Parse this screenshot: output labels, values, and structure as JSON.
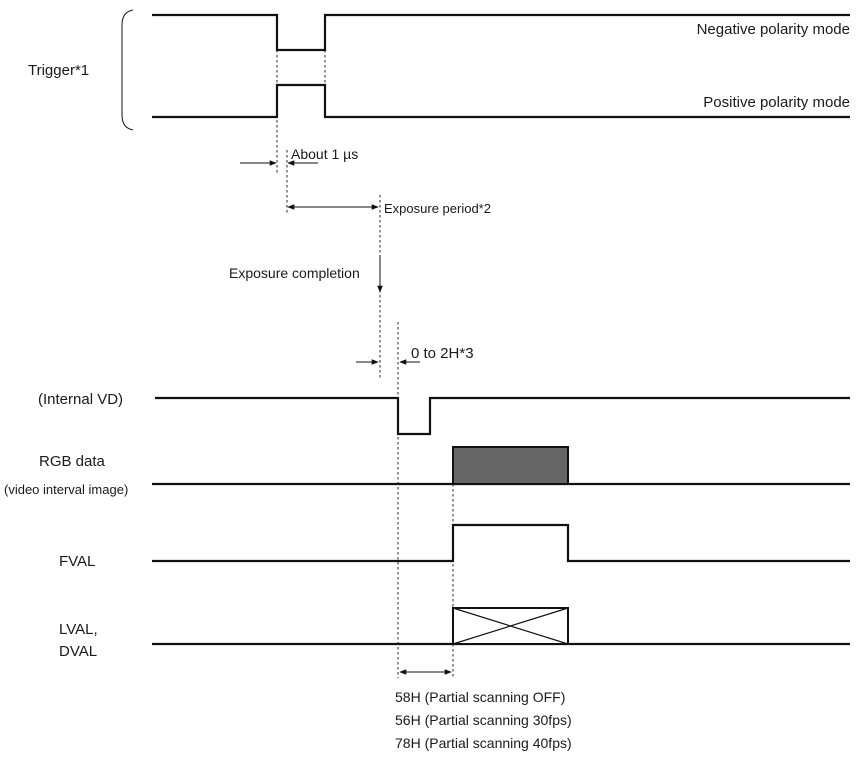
{
  "labels": {
    "trigger": "Trigger*1",
    "negative_mode": "Negative polarity mode",
    "positive_mode": "Positive polarity mode",
    "about_1us": "About 1 µs",
    "exposure_period": "Exposure period*2",
    "exposure_completion": "Exposure completion",
    "zero_to_2h": "0 to 2H*3",
    "internal_vd": "(Internal VD)",
    "rgb_data": "RGB data",
    "rgb_sub": "(video interval image)",
    "fval": "FVAL",
    "lval": "LVAL,",
    "dval": "DVAL"
  },
  "notes": [
    "58H (Partial scanning OFF)",
    "56H (Partial scanning 30fps)",
    "78H (Partial scanning 40fps)"
  ],
  "colors": {
    "rgb_block_fill": "#666666",
    "line": "#111111"
  }
}
